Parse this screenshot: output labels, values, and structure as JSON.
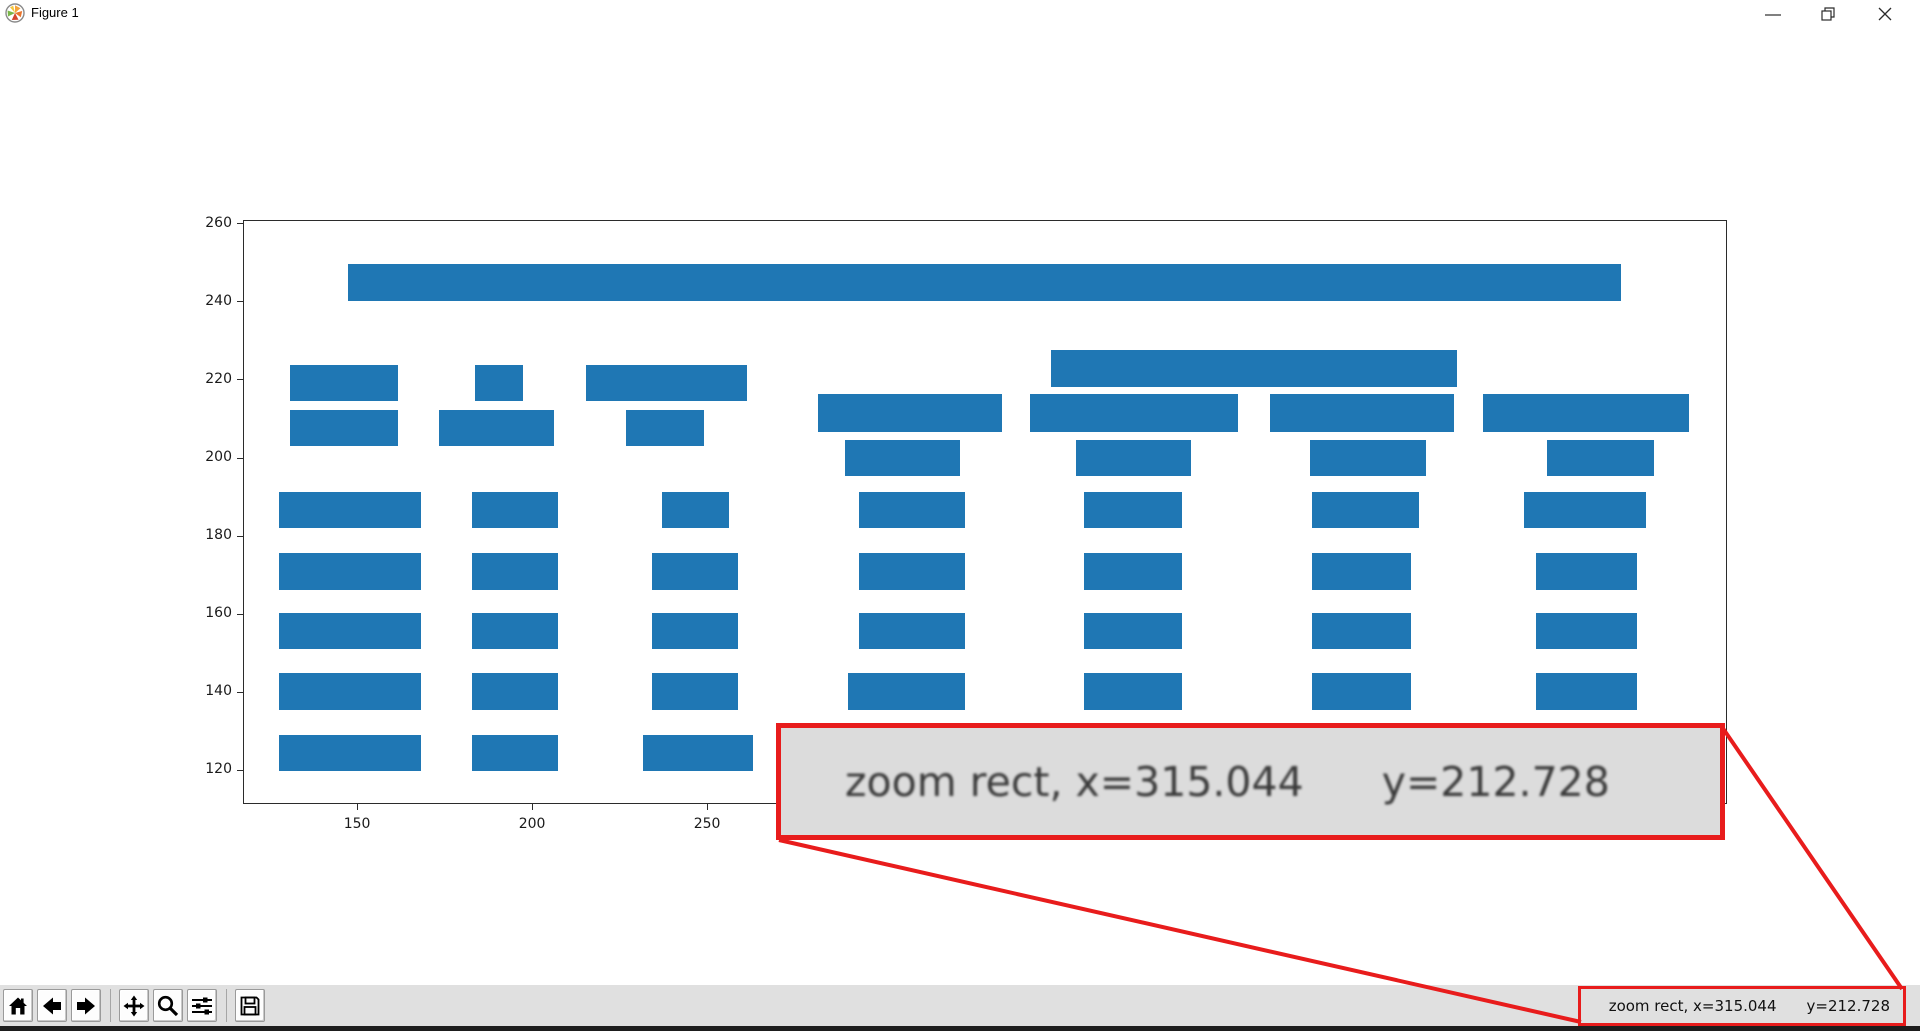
{
  "window": {
    "title": "Figure 1",
    "controls": {
      "minimize": "minimize",
      "restore": "restore-down",
      "close": "close"
    }
  },
  "toolbar": {
    "buttons": [
      "home",
      "back",
      "forward",
      "pan",
      "zoom-to-rect",
      "configure-subplots",
      "save"
    ],
    "status": {
      "primary": "zoom rect, x=315.044",
      "secondary": "y=212.728"
    }
  },
  "magnifier_callout": {
    "primary": "zoom rect, x=315.044",
    "secondary": "y=212.728"
  },
  "colors": {
    "bar_blue": "#1f77b4",
    "annotation_red": "#e81c1c",
    "toolbar_bg": "#e0e0e0",
    "magnifier_bg": "#dcdcdc"
  },
  "chart_data": {
    "type": "bar",
    "subtype": "horizontal-bar-segments",
    "title": "",
    "xlabel": "",
    "ylabel": "",
    "grid": false,
    "legend": null,
    "xlim": [
      117.4,
      541.4
    ],
    "ylim": [
      111.3,
      261.0
    ],
    "x_ticks": [
      150,
      200,
      250
    ],
    "y_ticks": [
      120,
      140,
      160,
      180,
      200,
      220,
      240,
      260
    ],
    "bar_color": "#1f77b4",
    "bars": [
      {
        "x0": 147.0,
        "x1": 510.8,
        "y0": 240.5,
        "y1": 250.0
      },
      {
        "x0": 348.0,
        "x1": 464.0,
        "y0": 218.5,
        "y1": 227.9
      },
      {
        "x0": 130.4,
        "x1": 161.5,
        "y0": 214.9,
        "y1": 224.1
      },
      {
        "x0": 183.5,
        "x1": 197.0,
        "y0": 214.9,
        "y1": 224.1
      },
      {
        "x0": 215.0,
        "x1": 261.0,
        "y0": 214.9,
        "y1": 224.1
      },
      {
        "x0": 130.4,
        "x1": 161.5,
        "y0": 203.4,
        "y1": 212.5
      },
      {
        "x0": 173.0,
        "x1": 206.0,
        "y0": 203.4,
        "y1": 212.5
      },
      {
        "x0": 226.6,
        "x1": 248.8,
        "y0": 203.4,
        "y1": 212.5
      },
      {
        "x0": 281.5,
        "x1": 334.0,
        "y0": 207.0,
        "y1": 216.6
      },
      {
        "x0": 342.0,
        "x1": 401.5,
        "y0": 207.0,
        "y1": 216.6
      },
      {
        "x0": 410.5,
        "x1": 463.0,
        "y0": 207.0,
        "y1": 216.6
      },
      {
        "x0": 471.3,
        "x1": 530.2,
        "y0": 207.0,
        "y1": 216.6
      },
      {
        "x0": 289.0,
        "x1": 322.0,
        "y0": 195.6,
        "y1": 204.8
      },
      {
        "x0": 355.0,
        "x1": 388.0,
        "y0": 195.6,
        "y1": 204.8
      },
      {
        "x0": 422.0,
        "x1": 455.0,
        "y0": 195.6,
        "y1": 204.8
      },
      {
        "x0": 489.6,
        "x1": 520.4,
        "y0": 195.6,
        "y1": 204.8
      },
      {
        "x0": 127.3,
        "x1": 168.1,
        "y0": 182.3,
        "y1": 191.5
      },
      {
        "x0": 182.5,
        "x1": 207.2,
        "y0": 182.3,
        "y1": 191.5
      },
      {
        "x0": 236.7,
        "x1": 256.0,
        "y0": 182.3,
        "y1": 191.5
      },
      {
        "x0": 293.1,
        "x1": 323.3,
        "y0": 182.3,
        "y1": 191.5
      },
      {
        "x0": 357.3,
        "x1": 385.5,
        "y0": 182.3,
        "y1": 191.5
      },
      {
        "x0": 422.5,
        "x1": 453.2,
        "y0": 182.3,
        "y1": 191.5
      },
      {
        "x0": 483.2,
        "x1": 518.0,
        "y0": 182.3,
        "y1": 191.5
      },
      {
        "x0": 127.3,
        "x1": 168.1,
        "y0": 166.5,
        "y1": 175.9
      },
      {
        "x0": 182.5,
        "x1": 207.2,
        "y0": 166.5,
        "y1": 175.9
      },
      {
        "x0": 234.0,
        "x1": 258.7,
        "y0": 166.5,
        "y1": 175.9
      },
      {
        "x0": 293.1,
        "x1": 323.3,
        "y0": 166.5,
        "y1": 175.9
      },
      {
        "x0": 357.3,
        "x1": 385.5,
        "y0": 166.5,
        "y1": 175.9
      },
      {
        "x0": 422.5,
        "x1": 450.7,
        "y0": 166.5,
        "y1": 175.9
      },
      {
        "x0": 486.4,
        "x1": 515.4,
        "y0": 166.5,
        "y1": 175.9
      },
      {
        "x0": 127.3,
        "x1": 168.1,
        "y0": 151.2,
        "y1": 160.6
      },
      {
        "x0": 182.5,
        "x1": 207.2,
        "y0": 151.2,
        "y1": 160.6
      },
      {
        "x0": 234.0,
        "x1": 258.7,
        "y0": 151.2,
        "y1": 160.6
      },
      {
        "x0": 293.1,
        "x1": 323.3,
        "y0": 151.2,
        "y1": 160.6
      },
      {
        "x0": 357.3,
        "x1": 385.5,
        "y0": 151.2,
        "y1": 160.6
      },
      {
        "x0": 422.5,
        "x1": 450.7,
        "y0": 151.2,
        "y1": 160.6
      },
      {
        "x0": 486.4,
        "x1": 515.4,
        "y0": 151.2,
        "y1": 160.6
      },
      {
        "x0": 127.3,
        "x1": 168.1,
        "y0": 135.7,
        "y1": 145.2
      },
      {
        "x0": 182.5,
        "x1": 207.2,
        "y0": 135.7,
        "y1": 145.2
      },
      {
        "x0": 234.0,
        "x1": 258.7,
        "y0": 135.7,
        "y1": 145.2
      },
      {
        "x0": 289.9,
        "x1": 323.3,
        "y0": 135.7,
        "y1": 145.2
      },
      {
        "x0": 357.3,
        "x1": 385.5,
        "y0": 135.7,
        "y1": 145.2
      },
      {
        "x0": 422.5,
        "x1": 450.7,
        "y0": 135.7,
        "y1": 145.2
      },
      {
        "x0": 486.4,
        "x1": 515.4,
        "y0": 135.7,
        "y1": 145.2
      },
      {
        "x0": 127.3,
        "x1": 168.1,
        "y0": 119.9,
        "y1": 129.2
      },
      {
        "x0": 182.5,
        "x1": 207.2,
        "y0": 119.9,
        "y1": 129.2
      },
      {
        "x0": 231.3,
        "x1": 262.9,
        "y0": 119.9,
        "y1": 129.2
      }
    ]
  }
}
